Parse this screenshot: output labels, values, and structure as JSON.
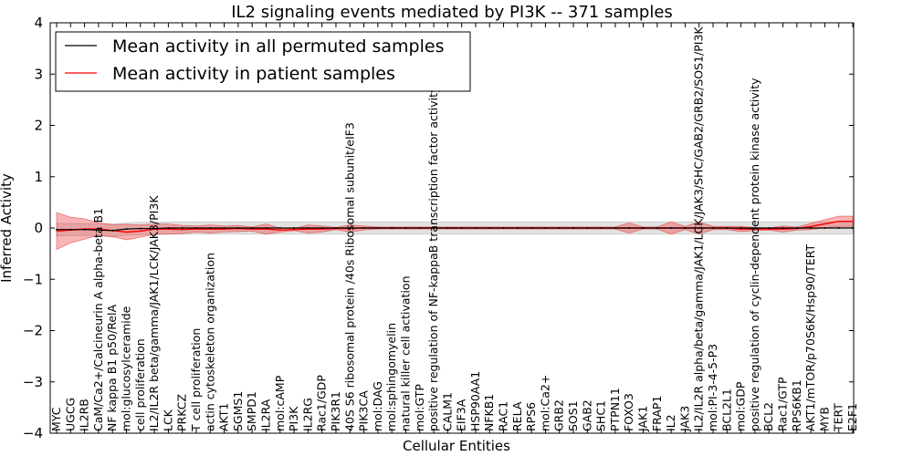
{
  "chart_data": {
    "type": "line",
    "title": "IL2 signaling events mediated by PI3K -- 371 samples",
    "xlabel": "Cellular Entities",
    "ylabel": "Inferred Activity",
    "ylim": [
      -4,
      4
    ],
    "yticks": [
      "4",
      "3",
      "2",
      "1",
      "0",
      "−1",
      "−2",
      "−3",
      "−4"
    ],
    "ytick_values": [
      4,
      3,
      2,
      1,
      0,
      -1,
      -2,
      -3,
      -4
    ],
    "legend": {
      "location": "top-left",
      "entries": [
        {
          "label": "Mean activity in all permuted samples",
          "color": "#000000"
        },
        {
          "label": "Mean activity in patient samples",
          "color": "#ff0000"
        }
      ]
    },
    "categories": [
      "MYC",
      "UGCG",
      "IL2RB",
      "CaM/Ca2+/Calcineurin A alpha-beta B1",
      "NF kappa B1 p50/RelA",
      "mol:glucosylceramide",
      "cell proliferation",
      "IL2/IL2R beta/gamma/JAK1/LCK/JAK3/PI3K",
      "LCK",
      "PRKCZ",
      "T cell proliferation",
      "actin cytoskeleton organization",
      "AKT1",
      "SGMS1",
      "SMPD1",
      "IL2RA",
      "mol:cAMP",
      "PI3K",
      "IL2RG",
      "Rac1/GDP",
      "PIK3R1",
      "40S S6 ribosomal protein /40s Ribosomal subunit/eIF3",
      "PIK3CA",
      "mol:DAG",
      "mol:sphingomyelin",
      "natural killer cell activation",
      "mol:GTP",
      "positive regulation of NF-kappaB transcription factor activity",
      "CALM1",
      "EIF3A",
      "HSP90AA1",
      "NFKB1",
      "RAC1",
      "RELA",
      "RPS6",
      "mol:Ca2+",
      "GRB2",
      "SOS1",
      "GAB2",
      "SHC1",
      "PTPN11",
      "FOXO3",
      "JAK1",
      "FRAP1",
      "IL2",
      "JAK3",
      "IL2/IL2R alpha/beta/gamma/JAK1/LCK/JAK3/SHC/GAB2/GRB2/SOS1/PI3K",
      "mol:PI-3-4-5-P3",
      "BCL2L1",
      "mol:GDP",
      "positive regulation of cyclin-dependent protein kinase activity",
      "BCL2",
      "Rac1/GTP",
      "RPS6KB1",
      "AKT1/mTOR/p70S6K/Hsp90/TERT",
      "MYB",
      "TERT",
      "E2F1"
    ],
    "series": [
      {
        "name": "Mean activity in all permuted samples",
        "color": "#000000",
        "values": [
          -0.03,
          -0.03,
          -0.03,
          -0.04,
          -0.05,
          -0.02,
          -0.01,
          -0.01,
          0.0,
          0.0,
          0.0,
          0.0,
          0.0,
          0.0,
          0.0,
          0.0,
          0.0,
          0.0,
          0.0,
          0.0,
          0.0,
          0.0,
          0.0,
          0.0,
          0.0,
          0.0,
          0.0,
          0.0,
          0.0,
          0.0,
          0.0,
          0.0,
          0.0,
          0.0,
          0.0,
          0.0,
          0.0,
          0.0,
          0.0,
          0.0,
          0.0,
          0.0,
          0.0,
          0.0,
          0.0,
          0.0,
          0.0,
          0.0,
          0.0,
          0.0,
          0.0,
          0.0,
          0.0,
          0.0,
          0.0,
          0.0,
          0.0,
          0.0
        ],
        "band": 0.12
      },
      {
        "name": "Mean activity in patient samples",
        "color": "#ff0000",
        "values": [
          -0.06,
          -0.04,
          -0.02,
          -0.02,
          -0.05,
          -0.08,
          -0.06,
          -0.02,
          -0.02,
          -0.03,
          -0.02,
          -0.02,
          -0.02,
          -0.01,
          -0.02,
          -0.02,
          -0.04,
          -0.03,
          -0.02,
          -0.02,
          -0.01,
          -0.01,
          0.0,
          0.0,
          0.0,
          0.0,
          0.0,
          0.0,
          0.0,
          0.0,
          0.0,
          0.0,
          0.0,
          0.0,
          0.0,
          0.0,
          0.0,
          0.0,
          0.0,
          0.0,
          0.0,
          0.0,
          0.0,
          0.0,
          0.0,
          0.0,
          0.0,
          0.0,
          0.0,
          -0.02,
          -0.02,
          -0.02,
          -0.02,
          -0.01,
          0.03,
          0.08,
          0.13,
          0.13
        ],
        "band": [
          0.36,
          0.25,
          0.2,
          0.12,
          0.12,
          0.15,
          0.12,
          0.1,
          0.1,
          0.08,
          0.06,
          0.08,
          0.06,
          0.06,
          0.04,
          0.1,
          0.04,
          0.02,
          0.08,
          0.06,
          0.02,
          0.07,
          0.04,
          0.02,
          0.02,
          0.02,
          0.02,
          0.02,
          0.02,
          0.02,
          0.02,
          0.02,
          0.02,
          0.02,
          0.02,
          0.02,
          0.02,
          0.02,
          0.02,
          0.02,
          0.02,
          0.1,
          0.02,
          0.02,
          0.12,
          0.03,
          0.12,
          0.03,
          0.03,
          0.05,
          0.03,
          0.02,
          0.06,
          0.03,
          0.06,
          0.08,
          0.1,
          0.1
        ]
      }
    ]
  }
}
